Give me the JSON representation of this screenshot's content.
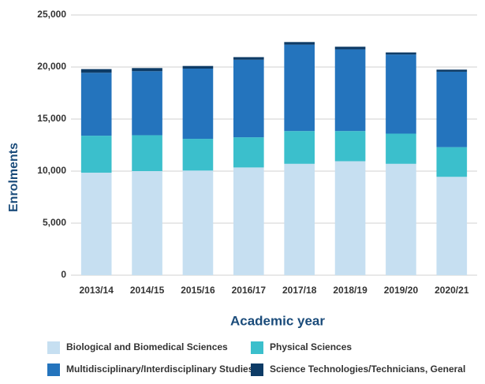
{
  "chart_data": {
    "type": "stacked_bar",
    "x_label": "Academic year",
    "y_label": "Enrolments",
    "categories": [
      "2013/14",
      "2014/15",
      "2015/16",
      "2016/17",
      "2017/18",
      "2018/19",
      "2019/20",
      "2020/21"
    ],
    "series": [
      {
        "name": "Biological and Biomedical Sciences",
        "color": "#c6dff1",
        "values": [
          9850,
          10000,
          10050,
          10350,
          10700,
          10950,
          10700,
          9450
        ]
      },
      {
        "name": "Physical Sciences",
        "color": "#3bbfcc",
        "values": [
          3550,
          3450,
          3050,
          2900,
          3150,
          2900,
          2900,
          2850
        ]
      },
      {
        "name": "Multidisciplinary/Interdisciplinary Studies",
        "color": "#2474bd",
        "values": [
          6050,
          6150,
          6750,
          7450,
          8300,
          7850,
          7600,
          7250
        ]
      },
      {
        "name": "Science Technologies/Technicians, General",
        "color": "#0d3b66",
        "values": [
          350,
          300,
          250,
          250,
          250,
          250,
          200,
          200
        ]
      }
    ],
    "ylim": [
      0,
      25000
    ],
    "yticks": [
      0,
      {
        "value": 5000,
        "label": "5,000"
      },
      {
        "value": 10000,
        "label": "10,000"
      },
      {
        "value": 15000,
        "label": "15,000"
      },
      {
        "value": 20000,
        "label": "20,000"
      },
      {
        "value": 25000,
        "label": "25,000"
      }
    ],
    "grid": true
  }
}
